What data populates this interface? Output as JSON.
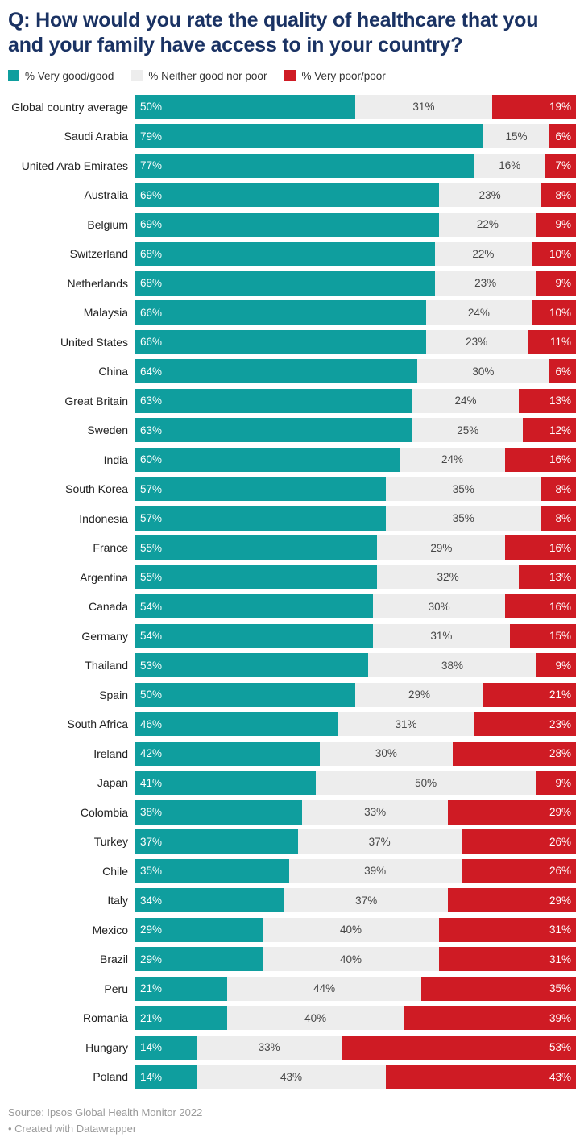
{
  "header": {
    "title": "Q: How would you rate the quality of healthcare that you and your family have access to in your country?"
  },
  "legend": [
    {
      "label": "% Very good/good",
      "color": "#0f9e9e"
    },
    {
      "label": "% Neither good nor poor",
      "color": "#ededed"
    },
    {
      "label": "% Very poor/poor",
      "color": "#cf1b24"
    }
  ],
  "chart_data": {
    "type": "bar",
    "subtype": "horizontal-stacked-100",
    "unit": "%",
    "xlim": [
      0,
      100
    ],
    "grid": false,
    "legend_position": "top",
    "series_names": [
      "% Very good/good",
      "% Neither good nor poor",
      "% Very poor/poor"
    ],
    "colors": {
      "good": "#0f9e9e",
      "neutral": "#ededed",
      "poor": "#cf1b24"
    },
    "rows": [
      {
        "label": "Global country average",
        "good": 50,
        "neutral": 31,
        "poor": 19
      },
      {
        "label": "Saudi Arabia",
        "good": 79,
        "neutral": 15,
        "poor": 6
      },
      {
        "label": "United Arab Emirates",
        "good": 77,
        "neutral": 16,
        "poor": 7
      },
      {
        "label": "Australia",
        "good": 69,
        "neutral": 23,
        "poor": 8
      },
      {
        "label": "Belgium",
        "good": 69,
        "neutral": 22,
        "poor": 9
      },
      {
        "label": "Switzerland",
        "good": 68,
        "neutral": 22,
        "poor": 10
      },
      {
        "label": "Netherlands",
        "good": 68,
        "neutral": 23,
        "poor": 9
      },
      {
        "label": "Malaysia",
        "good": 66,
        "neutral": 24,
        "poor": 10
      },
      {
        "label": "United States",
        "good": 66,
        "neutral": 23,
        "poor": 11
      },
      {
        "label": "China",
        "good": 64,
        "neutral": 30,
        "poor": 6
      },
      {
        "label": "Great Britain",
        "good": 63,
        "neutral": 24,
        "poor": 13
      },
      {
        "label": "Sweden",
        "good": 63,
        "neutral": 25,
        "poor": 12
      },
      {
        "label": "India",
        "good": 60,
        "neutral": 24,
        "poor": 16
      },
      {
        "label": "South Korea",
        "good": 57,
        "neutral": 35,
        "poor": 8
      },
      {
        "label": "Indonesia",
        "good": 57,
        "neutral": 35,
        "poor": 8
      },
      {
        "label": "France",
        "good": 55,
        "neutral": 29,
        "poor": 16
      },
      {
        "label": "Argentina",
        "good": 55,
        "neutral": 32,
        "poor": 13
      },
      {
        "label": "Canada",
        "good": 54,
        "neutral": 30,
        "poor": 16
      },
      {
        "label": "Germany",
        "good": 54,
        "neutral": 31,
        "poor": 15
      },
      {
        "label": "Thailand",
        "good": 53,
        "neutral": 38,
        "poor": 9
      },
      {
        "label": "Spain",
        "good": 50,
        "neutral": 29,
        "poor": 21
      },
      {
        "label": "South Africa",
        "good": 46,
        "neutral": 31,
        "poor": 23
      },
      {
        "label": "Ireland",
        "good": 42,
        "neutral": 30,
        "poor": 28
      },
      {
        "label": "Japan",
        "good": 41,
        "neutral": 50,
        "poor": 9
      },
      {
        "label": "Colombia",
        "good": 38,
        "neutral": 33,
        "poor": 29
      },
      {
        "label": "Turkey",
        "good": 37,
        "neutral": 37,
        "poor": 26
      },
      {
        "label": "Chile",
        "good": 35,
        "neutral": 39,
        "poor": 26
      },
      {
        "label": "Italy",
        "good": 34,
        "neutral": 37,
        "poor": 29
      },
      {
        "label": "Mexico",
        "good": 29,
        "neutral": 40,
        "poor": 31
      },
      {
        "label": "Brazil",
        "good": 29,
        "neutral": 40,
        "poor": 31
      },
      {
        "label": "Peru",
        "good": 21,
        "neutral": 44,
        "poor": 35
      },
      {
        "label": "Romania",
        "good": 21,
        "neutral": 40,
        "poor": 39
      },
      {
        "label": "Hungary",
        "good": 14,
        "neutral": 33,
        "poor": 53
      },
      {
        "label": "Poland",
        "good": 14,
        "neutral": 43,
        "poor": 43
      }
    ]
  },
  "footer": {
    "source": "Source: Ipsos Global Health Monitor 2022",
    "credit": "• Created with Datawrapper"
  }
}
